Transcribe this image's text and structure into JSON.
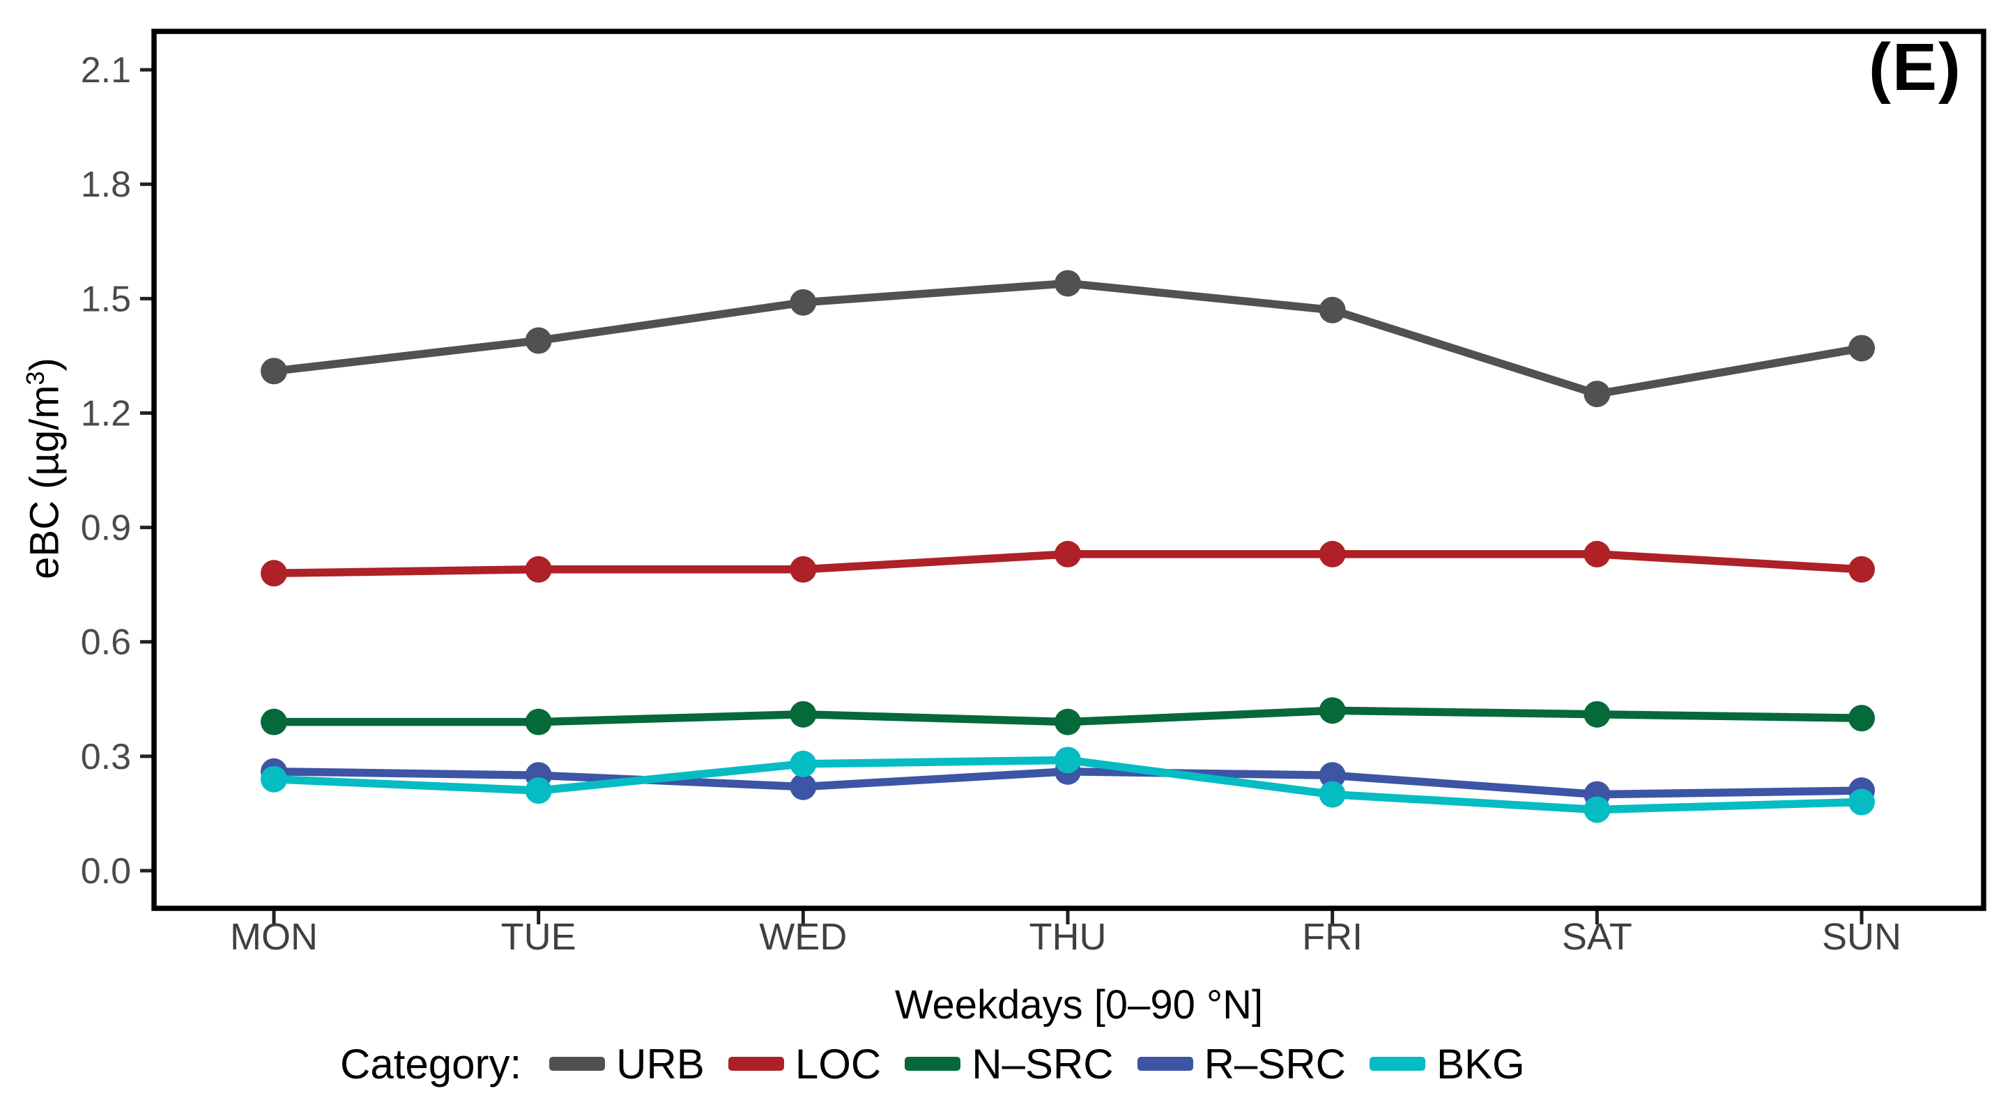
{
  "figure": {
    "annotation": "(E)"
  },
  "chart_data": {
    "type": "line",
    "title": "",
    "annotation": "(E)",
    "categories": [
      "MON",
      "TUE",
      "WED",
      "THU",
      "FRI",
      "SAT",
      "SUN"
    ],
    "xlabel": "Weekdays [0–90 °N]",
    "ylabel": "eBC (µg/m³)",
    "ylabel_parts": {
      "main": "eBC (µg/m",
      "sup": "3",
      "close": ")"
    },
    "y_ticks": [
      "0.0",
      "0.3",
      "0.6",
      "0.9",
      "1.2",
      "1.5",
      "1.8",
      "2.1"
    ],
    "ylim": [
      -0.1,
      2.2
    ],
    "grid": false,
    "legend_position": "bottom",
    "legend_title": "Category:",
    "axis_colors": {
      "tick_text": "#4a4a4a",
      "category_text": "#404040",
      "tick_mark": "#222222",
      "panel_border": "#000000"
    },
    "series": [
      {
        "name": "URB",
        "color": "#515151",
        "values": [
          1.31,
          1.39,
          1.49,
          1.54,
          1.47,
          1.25,
          1.37
        ]
      },
      {
        "name": "LOC",
        "color": "#ae2126",
        "values": [
          0.78,
          0.79,
          0.79,
          0.83,
          0.83,
          0.83,
          0.79
        ]
      },
      {
        "name": "N–SRC",
        "color": "#05693a",
        "values": [
          0.39,
          0.39,
          0.41,
          0.39,
          0.42,
          0.41,
          0.4
        ]
      },
      {
        "name": "R–SRC",
        "color": "#3e54a4",
        "values": [
          0.26,
          0.25,
          0.22,
          0.26,
          0.25,
          0.2,
          0.21
        ]
      },
      {
        "name": "BKG",
        "color": "#06bcc3",
        "values": [
          0.24,
          0.21,
          0.28,
          0.29,
          0.2,
          0.16,
          0.18
        ]
      }
    ]
  }
}
